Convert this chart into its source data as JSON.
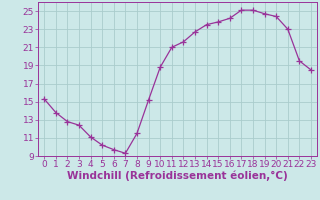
{
  "x": [
    0,
    1,
    2,
    3,
    4,
    5,
    6,
    7,
    8,
    9,
    10,
    11,
    12,
    13,
    14,
    15,
    16,
    17,
    18,
    19,
    20,
    21,
    22,
    23
  ],
  "y": [
    15.3,
    13.8,
    12.8,
    12.4,
    11.1,
    10.2,
    9.7,
    9.3,
    11.5,
    15.2,
    18.8,
    21.0,
    21.6,
    22.7,
    23.5,
    23.8,
    24.2,
    25.1,
    25.1,
    24.7,
    24.4,
    23.0,
    19.5,
    18.5
  ],
  "line_color": "#993399",
  "marker": "+",
  "marker_size": 4,
  "bg_color": "#cce8e8",
  "grid_color": "#aacccc",
  "xlabel": "Windchill (Refroidissement éolien,°C)",
  "ylabel": "",
  "ylim": [
    9,
    26
  ],
  "xlim": [
    -0.5,
    23.5
  ],
  "yticks": [
    9,
    11,
    13,
    15,
    17,
    19,
    21,
    23,
    25
  ],
  "xticks": [
    0,
    1,
    2,
    3,
    4,
    5,
    6,
    7,
    8,
    9,
    10,
    11,
    12,
    13,
    14,
    15,
    16,
    17,
    18,
    19,
    20,
    21,
    22,
    23
  ],
  "tick_color": "#993399",
  "label_color": "#993399",
  "axis_color": "#993399",
  "font_size": 6.5,
  "xlabel_fontsize": 7.5
}
